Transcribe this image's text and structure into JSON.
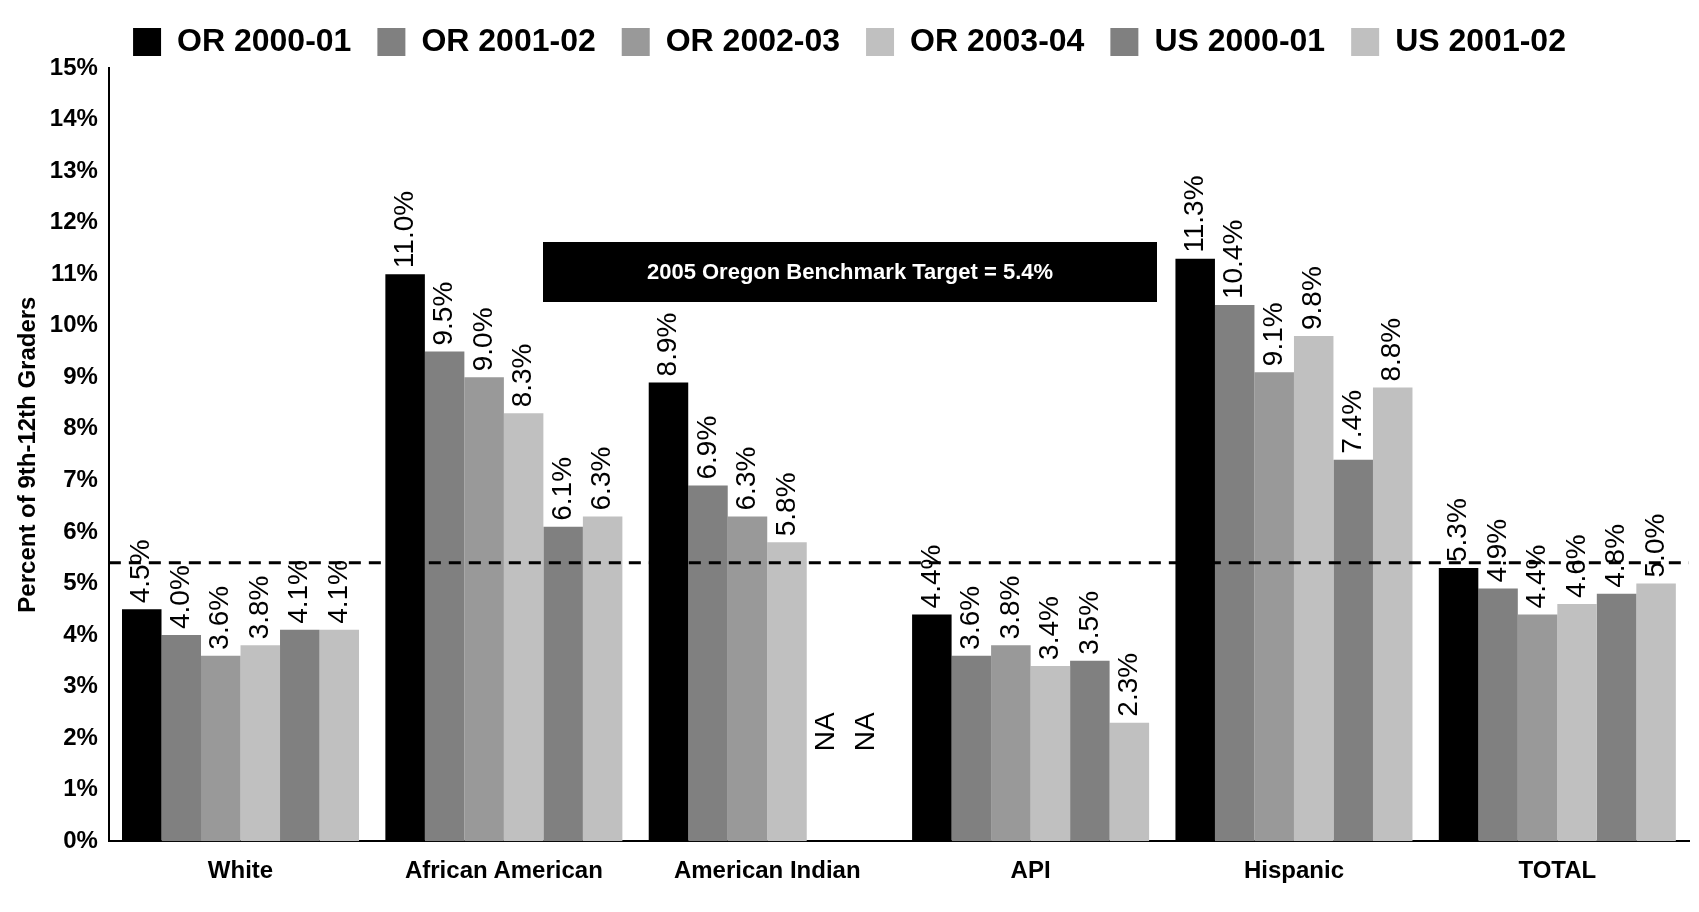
{
  "chart_data": {
    "type": "bar",
    "ylabel": "Percent of 9th-12th Graders",
    "categories": [
      "White",
      "African American",
      "American Indian",
      "API",
      "Hispanic",
      "TOTAL"
    ],
    "series": [
      {
        "name": "OR 2000-01",
        "color": "#000000",
        "values": [
          4.5,
          11.0,
          8.9,
          4.4,
          11.3,
          5.3
        ],
        "value_labels": [
          "4.5%",
          "11.0%",
          "8.9%",
          "4.4%",
          "11.3%",
          "5.3%"
        ]
      },
      {
        "name": "OR 2001-02",
        "color": "#808080",
        "values": [
          4.0,
          9.5,
          6.9,
          3.6,
          10.4,
          4.9
        ],
        "value_labels": [
          "4.0%",
          "9.5%",
          "6.9%",
          "3.6%",
          "10.4%",
          "4.9%"
        ]
      },
      {
        "name": "OR 2002-03",
        "color": "#999999",
        "values": [
          3.6,
          9.0,
          6.3,
          3.8,
          9.1,
          4.4
        ],
        "value_labels": [
          "3.6%",
          "9.0%",
          "6.3%",
          "3.8%",
          "9.1%",
          "4.4%"
        ]
      },
      {
        "name": "OR 2003-04",
        "color": "#c0c0c0",
        "values": [
          3.8,
          8.3,
          5.8,
          3.4,
          9.8,
          4.6
        ],
        "value_labels": [
          "3.8%",
          "8.3%",
          "5.8%",
          "3.4%",
          "9.8%",
          "4.6%"
        ]
      },
      {
        "name": "US 2000-01",
        "color": "#808080",
        "values": [
          4.1,
          6.1,
          null,
          3.5,
          7.4,
          4.8
        ],
        "value_labels": [
          "4.1%",
          "6.1%",
          "NA",
          "3.5%",
          "7.4%",
          "4.8%"
        ]
      },
      {
        "name": "US 2001-02",
        "color": "#c0c0c0",
        "values": [
          4.1,
          6.3,
          null,
          2.3,
          8.8,
          5.0
        ],
        "value_labels": [
          "4.1%",
          "6.3%",
          "NA",
          "2.3%",
          "8.8%",
          "5.0%"
        ]
      }
    ],
    "ylim": [
      0,
      15
    ],
    "yticks": [
      {
        "value": 0,
        "label": "0%"
      },
      {
        "value": 1,
        "label": "1%"
      },
      {
        "value": 2,
        "label": "2%"
      },
      {
        "value": 3,
        "label": "3%"
      },
      {
        "value": 4,
        "label": "4%"
      },
      {
        "value": 5,
        "label": "5%"
      },
      {
        "value": 6,
        "label": "6%"
      },
      {
        "value": 7,
        "label": "7%"
      },
      {
        "value": 8,
        "label": "8%"
      },
      {
        "value": 9,
        "label": "9%"
      },
      {
        "value": 10,
        "label": "10%"
      },
      {
        "value": 11,
        "label": "11%"
      },
      {
        "value": 12,
        "label": "12%"
      },
      {
        "value": 13,
        "label": "13%"
      },
      {
        "value": 14,
        "label": "14%"
      },
      {
        "value": 15,
        "label": "15%"
      }
    ],
    "ref_lines": [
      {
        "axis": "y",
        "value": 5.4,
        "color": "#000000",
        "line_style": "dashed"
      }
    ],
    "annotations": [
      "2005 Oregon Benchmark Target = 5.4%"
    ],
    "grid": false,
    "legend": "top"
  }
}
